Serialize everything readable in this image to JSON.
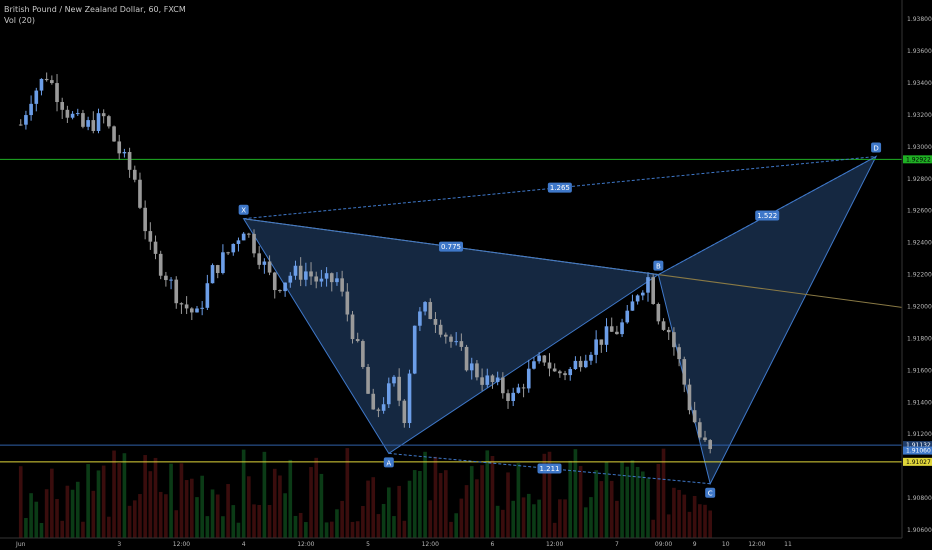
{
  "legend": {
    "symbol": "British Pound / New Zealand Dollar, 60, FXCM",
    "volume": "Vol (20)"
  },
  "colors": {
    "background": "#000000",
    "up": "#6c9ee8",
    "down": "#9a9a9a",
    "vol_up": "#0b3b16",
    "vol_down": "#3a0d0d",
    "pattern_fill": "rgba(64,120,196,0.33)",
    "pattern_line": "#3f78c9",
    "label_bg": "#3f78c9",
    "green_line": "#1fb024",
    "yellow_line": "#e0d63a",
    "blue_line": "#2f5fa8",
    "xb_line": "#8a7a45"
  },
  "chart_data": {
    "type": "candlestick",
    "ylim": [
      1.9055,
      1.9392
    ],
    "y_ticks": [
      "1.93800",
      "1.93600",
      "1.93400",
      "1.93200",
      "1.93000",
      "1.92800",
      "1.92600",
      "1.92400",
      "1.92200",
      "1.92000",
      "1.91800",
      "1.91600",
      "1.91400",
      "1.91200",
      "1.90800",
      "1.90600"
    ],
    "x_ticks": [
      {
        "label": "Jun",
        "hour": 0
      },
      {
        "label": "3",
        "hour": 19
      },
      {
        "label": "12:00",
        "hour": 31
      },
      {
        "label": "4",
        "hour": 43
      },
      {
        "label": "12:00",
        "hour": 55
      },
      {
        "label": "5",
        "hour": 67
      },
      {
        "label": "12:00",
        "hour": 79
      },
      {
        "label": "6",
        "hour": 91
      },
      {
        "label": "12:00",
        "hour": 103
      },
      {
        "label": "7",
        "hour": 115
      },
      {
        "label": "09:00",
        "hour": 124
      },
      {
        "label": "9",
        "hour": 130
      },
      {
        "label": "10",
        "hour": 136
      },
      {
        "label": "12:00",
        "hour": 142
      },
      {
        "label": "11",
        "hour": 148
      }
    ],
    "hour_range": [
      -4,
      170
    ],
    "candle_path": [
      [
        0,
        1.9314
      ],
      [
        2,
        1.9332
      ],
      [
        5,
        1.9345
      ],
      [
        9,
        1.9322
      ],
      [
        12,
        1.9312
      ],
      [
        16,
        1.9318
      ],
      [
        19,
        1.9297
      ],
      [
        22,
        1.928
      ],
      [
        25,
        1.9235
      ],
      [
        28,
        1.922
      ],
      [
        31,
        1.9202
      ],
      [
        34,
        1.9194
      ],
      [
        37,
        1.9222
      ],
      [
        40,
        1.9234
      ],
      [
        43,
        1.925
      ],
      [
        46,
        1.9232
      ],
      [
        49,
        1.9212
      ],
      [
        52,
        1.922
      ],
      [
        55,
        1.9222
      ],
      [
        58,
        1.9214
      ],
      [
        61,
        1.9217
      ],
      [
        64,
        1.9185
      ],
      [
        66,
        1.916
      ],
      [
        68,
        1.913
      ],
      [
        70,
        1.9142
      ],
      [
        72,
        1.9152
      ],
      [
        74,
        1.9132
      ],
      [
        76,
        1.919
      ],
      [
        78,
        1.9198
      ],
      [
        80,
        1.9193
      ],
      [
        83,
        1.9178
      ],
      [
        86,
        1.9165
      ],
      [
        89,
        1.9155
      ],
      [
        92,
        1.915
      ],
      [
        95,
        1.9143
      ],
      [
        98,
        1.9158
      ],
      [
        101,
        1.9168
      ],
      [
        103,
        1.9158
      ],
      [
        106,
        1.916
      ],
      [
        109,
        1.9172
      ],
      [
        112,
        1.918
      ],
      [
        115,
        1.9185
      ],
      [
        117,
        1.9192
      ],
      [
        119,
        1.921
      ],
      [
        121,
        1.9218
      ],
      [
        123,
        1.9195
      ],
      [
        125,
        1.9185
      ],
      [
        127,
        1.9165
      ],
      [
        129,
        1.9138
      ],
      [
        131,
        1.9118
      ],
      [
        133,
        1.9108
      ]
    ],
    "candle_interval_hours": 1,
    "horizontal_lines": [
      {
        "name": "green",
        "price": 1.92922,
        "label": "1.92922"
      },
      {
        "name": "blue",
        "price": 1.91132,
        "label": "1.91132"
      },
      {
        "name": "yellow",
        "price": 1.91027,
        "label": "1.91027"
      }
    ],
    "current_price": {
      "price": 1.9106,
      "label": "1.91060"
    },
    "pattern": {
      "points": [
        {
          "label": "X",
          "hour": 43,
          "price": 1.9255
        },
        {
          "label": "A",
          "hour": 71,
          "price": 1.9108
        },
        {
          "label": "B",
          "hour": 123,
          "price": 1.922
        },
        {
          "label": "C",
          "hour": 133,
          "price": 1.9089
        },
        {
          "label": "D",
          "hour": 165,
          "price": 1.9294
        }
      ],
      "ratios": [
        {
          "label": "1.265",
          "from": "X",
          "to": "D"
        },
        {
          "label": "0.775",
          "from": "X",
          "to": "B"
        },
        {
          "label": "1.522",
          "from": "B",
          "to": "D"
        },
        {
          "label": "1.211",
          "from": "A",
          "to": "C"
        }
      ]
    }
  }
}
